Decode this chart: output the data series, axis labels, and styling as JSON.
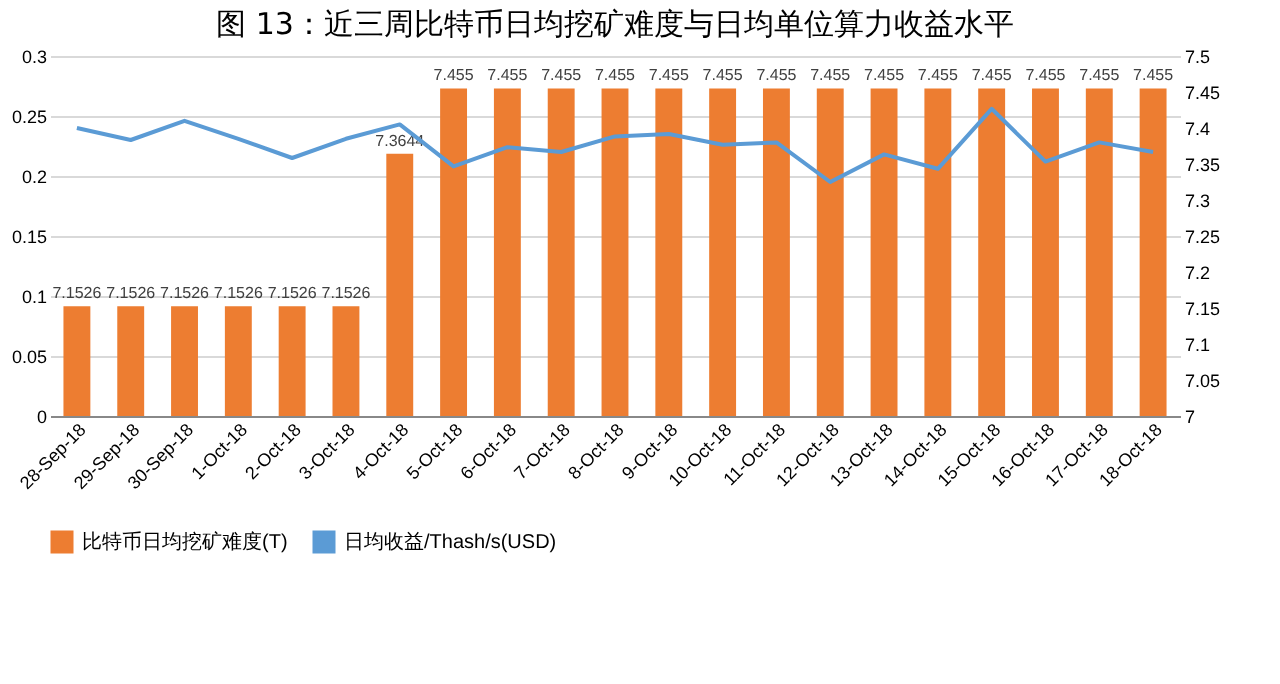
{
  "chart_data": {
    "type": "bar",
    "title": "图 13：近三周比特币日均挖矿难度与日均单位算力收益水平",
    "categories": [
      "28-Sep-18",
      "29-Sep-18",
      "30-Sep-18",
      "1-Oct-18",
      "2-Oct-18",
      "3-Oct-18",
      "4-Oct-18",
      "5-Oct-18",
      "6-Oct-18",
      "7-Oct-18",
      "8-Oct-18",
      "9-Oct-18",
      "10-Oct-18",
      "11-Oct-18",
      "12-Oct-18",
      "13-Oct-18",
      "14-Oct-18",
      "15-Oct-18",
      "16-Oct-18",
      "17-Oct-18",
      "18-Oct-18"
    ],
    "series": [
      {
        "name": "比特币日均挖矿难度(T)",
        "axis": "y2",
        "color": "#ed7d31",
        "values": [
          7.1526,
          7.1526,
          7.1526,
          7.1526,
          7.1526,
          7.1526,
          7.3644,
          7.455,
          7.455,
          7.455,
          7.455,
          7.455,
          7.455,
          7.455,
          7.455,
          7.455,
          7.455,
          7.455,
          7.455,
          7.455,
          7.455
        ],
        "value_labels": [
          "7.1526",
          "7.1526",
          "7.1526",
          "7.1526",
          "7.1526",
          "7.1526",
          "7.3644",
          "7.455",
          "7.455",
          "7.455",
          "7.455",
          "7.455",
          "7.455",
          "7.455",
          "7.455",
          "7.455",
          "7.455",
          "7.455",
          "7.455",
          "7.455",
          "7.455"
        ]
      },
      {
        "name": "日均收益/Thash/s(USD)",
        "type": "line",
        "axis": "y",
        "color": "#5b9bd5",
        "values": [
          0.24,
          0.23,
          0.246,
          0.231,
          0.215,
          0.231,
          0.243,
          0.208,
          0.224,
          0.22,
          0.233,
          0.235,
          0.226,
          0.228,
          0.195,
          0.218,
          0.206,
          0.256,
          0.212,
          0.228,
          0.22
        ]
      }
    ],
    "ylim": [
      0,
      0.3
    ],
    "yticks": [
      0,
      0.05,
      0.1,
      0.15,
      0.2,
      0.25,
      0.3
    ],
    "y2lim": [
      7,
      7.5
    ],
    "y2ticks": [
      7,
      7.05,
      7.1,
      7.15,
      7.2,
      7.25,
      7.3,
      7.35,
      7.4,
      7.45,
      7.5
    ],
    "grid": "y",
    "legend": "bottom",
    "marker": "none",
    "line_style": "solid"
  }
}
